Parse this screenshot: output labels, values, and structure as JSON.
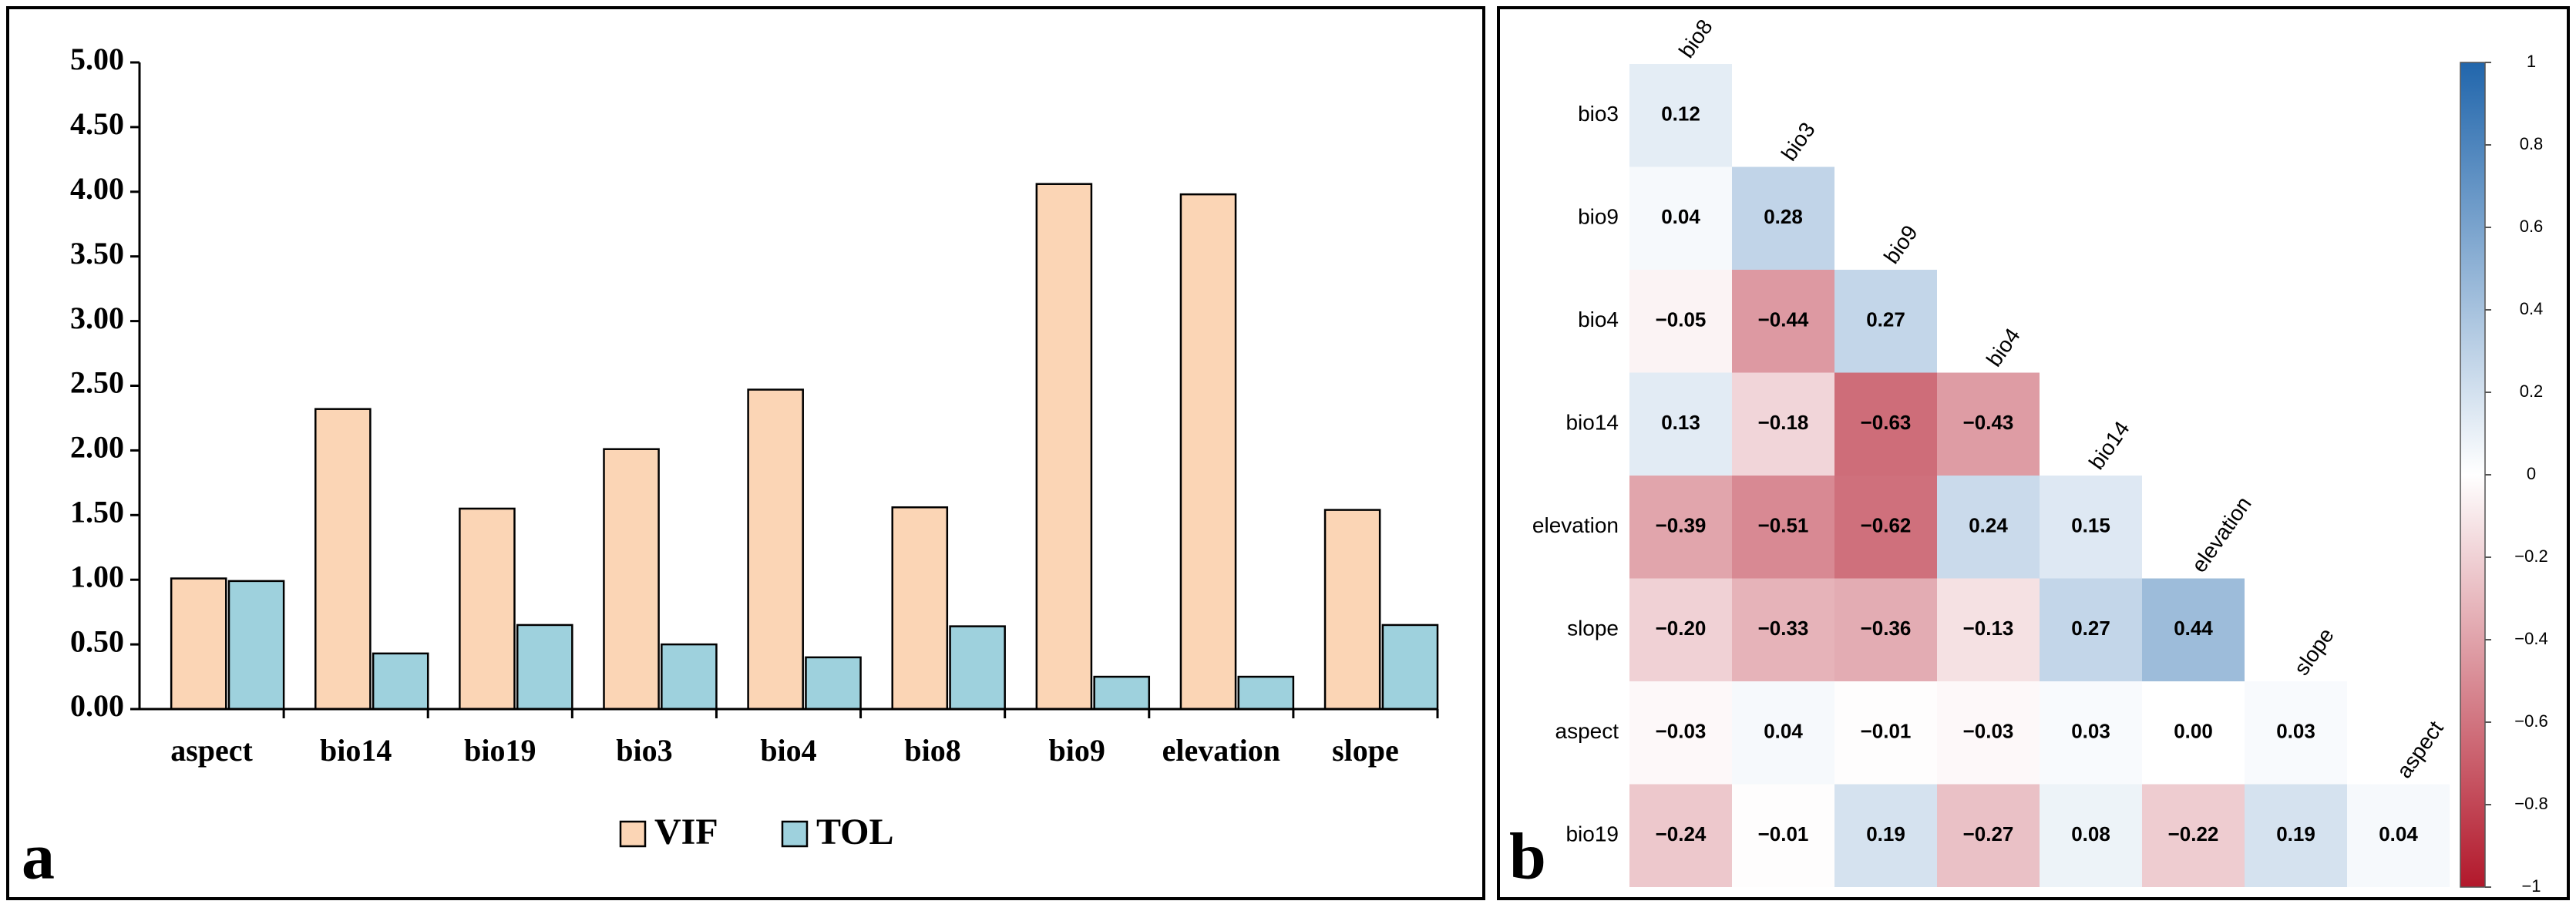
{
  "chart_data": [
    {
      "type": "bar",
      "panel_label": "a",
      "categories": [
        "aspect",
        "bio14",
        "bio19",
        "bio3",
        "bio4",
        "bio8",
        "bio9",
        "elevation",
        "slope"
      ],
      "series": [
        {
          "name": "VIF",
          "color": "#fbd5b5",
          "values": [
            1.01,
            2.32,
            1.55,
            2.01,
            2.47,
            1.56,
            4.06,
            3.98,
            1.54
          ]
        },
        {
          "name": "TOL",
          "color": "#9ed1dd",
          "values": [
            0.99,
            0.43,
            0.65,
            0.5,
            0.4,
            0.64,
            0.25,
            0.25,
            0.65
          ]
        }
      ],
      "ylim": [
        0,
        5
      ],
      "yticks": [
        {
          "value": 0,
          "label": "0.00"
        },
        {
          "value": 0.5,
          "label": "0.50"
        },
        {
          "value": 1,
          "label": "1.00"
        },
        {
          "value": 1.5,
          "label": "1.50"
        },
        {
          "value": 2,
          "label": "2.00"
        },
        {
          "value": 2.5,
          "label": "2.50"
        },
        {
          "value": 3,
          "label": "3.00"
        },
        {
          "value": 3.5,
          "label": "3.50"
        },
        {
          "value": 4,
          "label": "4.00"
        },
        {
          "value": 4.5,
          "label": "4.50"
        },
        {
          "value": 5,
          "label": "5.00"
        }
      ],
      "grid": false,
      "legend": "bottom"
    },
    {
      "type": "heatmap",
      "panel_label": "b",
      "rows": [
        "bio3",
        "bio9",
        "bio4",
        "bio14",
        "elevation",
        "slope",
        "aspect",
        "bio19"
      ],
      "columns": [
        "bio8",
        "bio3",
        "bio9",
        "bio4",
        "bio14",
        "elevation",
        "slope",
        "aspect"
      ],
      "values": [
        [
          0.12
        ],
        [
          0.04,
          0.28
        ],
        [
          -0.05,
          -0.44,
          0.27
        ],
        [
          0.13,
          -0.18,
          -0.63,
          -0.43
        ],
        [
          -0.39,
          -0.51,
          -0.62,
          0.24,
          0.15
        ],
        [
          -0.2,
          -0.33,
          -0.36,
          -0.13,
          0.27,
          0.44
        ],
        [
          -0.03,
          0.04,
          -0.01,
          -0.03,
          0.03,
          0,
          0.03
        ],
        [
          -0.24,
          -0.01,
          0.19,
          -0.27,
          0.08,
          -0.22,
          0.19,
          0.04
        ]
      ],
      "value_labels": [
        [
          "0.12"
        ],
        [
          "0.04",
          "0.28"
        ],
        [
          "−0.05",
          "−0.44",
          "0.27"
        ],
        [
          "0.13",
          "−0.18",
          "−0.63",
          "−0.43"
        ],
        [
          "−0.39",
          "−0.51",
          "−0.62",
          "0.24",
          "0.15"
        ],
        [
          "−0.20",
          "−0.33",
          "−0.36",
          "−0.13",
          "0.27",
          "0.44"
        ],
        [
          "−0.03",
          "0.04",
          "−0.01",
          "−0.03",
          "0.03",
          "0.00",
          "0.03"
        ],
        [
          "−0.24",
          "−0.01",
          "0.19",
          "−0.27",
          "0.08",
          "−0.22",
          "0.19",
          "0.04"
        ]
      ],
      "colormap": [
        "#b2182b",
        "#ffffff",
        "#2166ac"
      ],
      "clim": [
        -1,
        1
      ],
      "cticks": [
        1,
        0.8,
        0.6,
        0.4,
        0.2,
        0,
        {
          "value": -0.2,
          "label": "−0.2"
        },
        {
          "value": -0.4,
          "label": "−0.4"
        },
        {
          "value": -0.6,
          "label": "−0.6"
        },
        {
          "value": -0.8,
          "label": "−0.8"
        },
        {
          "value": -1,
          "label": "−1"
        }
      ]
    }
  ]
}
